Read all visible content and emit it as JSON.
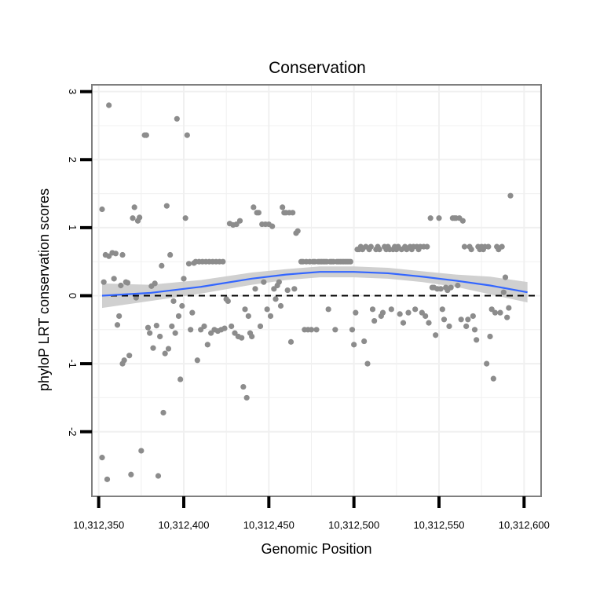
{
  "chart_data": {
    "type": "scatter",
    "title": "Conservation",
    "xlabel": "Genomic Position",
    "ylabel": "phyloP LRT conservation scores",
    "xlim": [
      10312346,
      10312610
    ],
    "ylim": [
      -2.95,
      3.1
    ],
    "x_ticks": [
      10312350,
      10312400,
      10312450,
      10312500,
      10312550,
      10312600
    ],
    "x_tick_labels": [
      "10,312,350",
      "10,312,400",
      "10,312,450",
      "10,312,500",
      "10,312,550",
      "10,312,600"
    ],
    "y_ticks": [
      3,
      2,
      1,
      0,
      -1,
      -2
    ],
    "y_tick_labels": [
      "3",
      "2",
      "1",
      "0",
      "-1",
      "-2"
    ],
    "grid": true,
    "reference_line": {
      "y": 0,
      "style": "dashed",
      "color": "#000000"
    },
    "colors": {
      "points": "#8c8c8c",
      "smooth": "#3366ff",
      "band": "#c8c8c8",
      "panel_border": "#7f7f7f",
      "grid": "#f0f0f0"
    },
    "series": [
      {
        "name": "scores",
        "points": [
          [
            10312352,
            1.27
          ],
          [
            10312352,
            -2.38
          ],
          [
            10312353,
            0.2
          ],
          [
            10312354,
            0.6
          ],
          [
            10312355,
            -2.7
          ],
          [
            10312356,
            2.8
          ],
          [
            10312356,
            0.58
          ],
          [
            10312358,
            0.63
          ],
          [
            10312359,
            0.25
          ],
          [
            10312360,
            0.62
          ],
          [
            10312361,
            -0.43
          ],
          [
            10312362,
            -0.3
          ],
          [
            10312363,
            0.15
          ],
          [
            10312364,
            -1.0
          ],
          [
            10312364,
            0.6
          ],
          [
            10312365,
            -0.95
          ],
          [
            10312366,
            0.2
          ],
          [
            10312367,
            0.19
          ],
          [
            10312368,
            -0.88
          ],
          [
            10312369,
            -2.63
          ],
          [
            10312370,
            1.14
          ],
          [
            10312371,
            1.3
          ],
          [
            10312372,
            -0.03
          ],
          [
            10312373,
            1.1
          ],
          [
            10312374,
            1.15
          ],
          [
            10312375,
            -2.28
          ],
          [
            10312377,
            2.36
          ],
          [
            10312378,
            2.36
          ],
          [
            10312379,
            -0.47
          ],
          [
            10312380,
            -0.55
          ],
          [
            10312381,
            0.14
          ],
          [
            10312382,
            -0.77
          ],
          [
            10312383,
            0.18
          ],
          [
            10312384,
            -0.44
          ],
          [
            10312385,
            -2.65
          ],
          [
            10312386,
            -0.6
          ],
          [
            10312387,
            0.44
          ],
          [
            10312388,
            -1.72
          ],
          [
            10312389,
            -0.85
          ],
          [
            10312390,
            1.32
          ],
          [
            10312391,
            -0.78
          ],
          [
            10312392,
            0.6
          ],
          [
            10312393,
            -0.45
          ],
          [
            10312394,
            -0.08
          ],
          [
            10312395,
            -0.55
          ],
          [
            10312396,
            2.6
          ],
          [
            10312397,
            -0.3
          ],
          [
            10312398,
            -1.23
          ],
          [
            10312399,
            -0.15
          ],
          [
            10312400,
            0.25
          ],
          [
            10312401,
            1.14
          ],
          [
            10312402,
            2.36
          ],
          [
            10312403,
            0.47
          ],
          [
            10312404,
            -0.5
          ],
          [
            10312405,
            -0.25
          ],
          [
            10312406,
            0.48
          ],
          [
            10312407,
            0.5
          ],
          [
            10312408,
            -0.95
          ],
          [
            10312409,
            0.5
          ],
          [
            10312410,
            -0.5
          ],
          [
            10312411,
            0.5
          ],
          [
            10312412,
            -0.45
          ],
          [
            10312413,
            0.5
          ],
          [
            10312414,
            -0.72
          ],
          [
            10312415,
            0.5
          ],
          [
            10312416,
            -0.55
          ],
          [
            10312417,
            0.5
          ],
          [
            10312418,
            -0.5
          ],
          [
            10312419,
            0.5
          ],
          [
            10312420,
            -0.52
          ],
          [
            10312421,
            0.5
          ],
          [
            10312422,
            -0.5
          ],
          [
            10312423,
            0.5
          ],
          [
            10312424,
            -0.48
          ],
          [
            10312425,
            -0.05
          ],
          [
            10312426,
            -0.08
          ],
          [
            10312427,
            1.06
          ],
          [
            10312428,
            -0.45
          ],
          [
            10312429,
            1.04
          ],
          [
            10312430,
            -0.55
          ],
          [
            10312431,
            1.05
          ],
          [
            10312432,
            -0.6
          ],
          [
            10312433,
            1.1
          ],
          [
            10312434,
            -0.62
          ],
          [
            10312435,
            -1.34
          ],
          [
            10312436,
            -0.2
          ],
          [
            10312437,
            -1.5
          ],
          [
            10312438,
            -0.3
          ],
          [
            10312439,
            -0.55
          ],
          [
            10312440,
            -0.6
          ],
          [
            10312441,
            1.3
          ],
          [
            10312442,
            0.1
          ],
          [
            10312443,
            1.22
          ],
          [
            10312444,
            1.22
          ],
          [
            10312445,
            -0.45
          ],
          [
            10312446,
            1.05
          ],
          [
            10312447,
            0.2
          ],
          [
            10312448,
            1.05
          ],
          [
            10312449,
            -0.2
          ],
          [
            10312450,
            1.05
          ],
          [
            10312451,
            -0.3
          ],
          [
            10312452,
            1.02
          ],
          [
            10312453,
            0.1
          ],
          [
            10312454,
            -0.05
          ],
          [
            10312455,
            0.15
          ],
          [
            10312456,
            0.2
          ],
          [
            10312457,
            -0.15
          ],
          [
            10312458,
            1.3
          ],
          [
            10312459,
            1.22
          ],
          [
            10312460,
            1.22
          ],
          [
            10312461,
            0.08
          ],
          [
            10312462,
            1.22
          ],
          [
            10312463,
            -0.68
          ],
          [
            10312464,
            1.22
          ],
          [
            10312465,
            0.1
          ],
          [
            10312466,
            0.92
          ],
          [
            10312467,
            0.95
          ],
          [
            10312469,
            0.5
          ],
          [
            10312470,
            0.5
          ],
          [
            10312471,
            -0.5
          ],
          [
            10312472,
            0.5
          ],
          [
            10312473,
            -0.5
          ],
          [
            10312474,
            0.5
          ],
          [
            10312475,
            -0.5
          ],
          [
            10312476,
            0.5
          ],
          [
            10312477,
            0.5
          ],
          [
            10312478,
            -0.5
          ],
          [
            10312479,
            0.5
          ],
          [
            10312480,
            0.5
          ],
          [
            10312481,
            0.5
          ],
          [
            10312482,
            0.5
          ],
          [
            10312483,
            0.5
          ],
          [
            10312484,
            0.5
          ],
          [
            10312485,
            -0.2
          ],
          [
            10312486,
            0.5
          ],
          [
            10312487,
            0.5
          ],
          [
            10312488,
            0.5
          ],
          [
            10312489,
            -0.5
          ],
          [
            10312490,
            0.5
          ],
          [
            10312491,
            0.5
          ],
          [
            10312492,
            0.5
          ],
          [
            10312493,
            0.5
          ],
          [
            10312494,
            0.5
          ],
          [
            10312495,
            0.5
          ],
          [
            10312496,
            0.5
          ],
          [
            10312497,
            0.5
          ],
          [
            10312498,
            0.5
          ],
          [
            10312499,
            -0.5
          ],
          [
            10312500,
            -0.72
          ],
          [
            10312501,
            -0.25
          ],
          [
            10312502,
            0.68
          ],
          [
            10312503,
            0.68
          ],
          [
            10312504,
            0.72
          ],
          [
            10312505,
            0.68
          ],
          [
            10312506,
            -0.67
          ],
          [
            10312507,
            0.72
          ],
          [
            10312508,
            -1.0
          ],
          [
            10312509,
            0.68
          ],
          [
            10312510,
            0.72
          ],
          [
            10312511,
            -0.2
          ],
          [
            10312512,
            -0.37
          ],
          [
            10312513,
            0.68
          ],
          [
            10312514,
            0.72
          ],
          [
            10312515,
            0.68
          ],
          [
            10312516,
            -0.3
          ],
          [
            10312517,
            -0.25
          ],
          [
            10312518,
            0.72
          ],
          [
            10312519,
            0.68
          ],
          [
            10312520,
            0.72
          ],
          [
            10312521,
            0.68
          ],
          [
            10312522,
            -0.2
          ],
          [
            10312523,
            0.68
          ],
          [
            10312524,
            0.72
          ],
          [
            10312525,
            0.68
          ],
          [
            10312526,
            0.72
          ],
          [
            10312527,
            -0.27
          ],
          [
            10312528,
            0.68
          ],
          [
            10312529,
            -0.4
          ],
          [
            10312530,
            0.72
          ],
          [
            10312531,
            0.68
          ],
          [
            10312532,
            -0.25
          ],
          [
            10312533,
            0.72
          ],
          [
            10312534,
            0.68
          ],
          [
            10312535,
            0.72
          ],
          [
            10312536,
            -0.2
          ],
          [
            10312537,
            0.72
          ],
          [
            10312538,
            0.68
          ],
          [
            10312539,
            0.72
          ],
          [
            10312540,
            -0.25
          ],
          [
            10312541,
            0.72
          ],
          [
            10312542,
            -0.3
          ],
          [
            10312543,
            0.72
          ],
          [
            10312544,
            -0.4
          ],
          [
            10312545,
            1.14
          ],
          [
            10312546,
            0.12
          ],
          [
            10312547,
            0.12
          ],
          [
            10312548,
            -0.58
          ],
          [
            10312549,
            0.1
          ],
          [
            10312550,
            1.14
          ],
          [
            10312551,
            0.1
          ],
          [
            10312552,
            -0.2
          ],
          [
            10312553,
            -0.35
          ],
          [
            10312554,
            0.12
          ],
          [
            10312555,
            0.08
          ],
          [
            10312556,
            -0.45
          ],
          [
            10312557,
            0.12
          ],
          [
            10312558,
            1.14
          ],
          [
            10312559,
            1.14
          ],
          [
            10312560,
            1.14
          ],
          [
            10312561,
            0.15
          ],
          [
            10312562,
            1.14
          ],
          [
            10312563,
            -0.35
          ],
          [
            10312564,
            1.1
          ],
          [
            10312565,
            0.72
          ],
          [
            10312566,
            -0.45
          ],
          [
            10312567,
            -0.35
          ],
          [
            10312568,
            0.72
          ],
          [
            10312569,
            0.68
          ],
          [
            10312570,
            -0.3
          ],
          [
            10312571,
            -0.5
          ],
          [
            10312572,
            -0.65
          ],
          [
            10312573,
            0.72
          ],
          [
            10312574,
            0.68
          ],
          [
            10312575,
            0.72
          ],
          [
            10312576,
            0.68
          ],
          [
            10312577,
            0.72
          ],
          [
            10312578,
            -1.0
          ],
          [
            10312579,
            0.72
          ],
          [
            10312580,
            -0.6
          ],
          [
            10312581,
            -0.2
          ],
          [
            10312582,
            -1.22
          ],
          [
            10312583,
            -0.25
          ],
          [
            10312584,
            0.72
          ],
          [
            10312585,
            0.68
          ],
          [
            10312586,
            -0.25
          ],
          [
            10312587,
            0.72
          ],
          [
            10312588,
            0.05
          ],
          [
            10312589,
            0.27
          ],
          [
            10312590,
            -0.32
          ],
          [
            10312591,
            -0.18
          ],
          [
            10312592,
            1.47
          ]
        ]
      }
    ],
    "smooth_line": {
      "method": "loess",
      "x": [
        10312352,
        10312380,
        10312410,
        10312440,
        10312460,
        10312480,
        10312500,
        10312520,
        10312540,
        10312560,
        10312580,
        10312602
      ],
      "y": [
        0.0,
        0.04,
        0.13,
        0.25,
        0.31,
        0.35,
        0.35,
        0.33,
        0.28,
        0.22,
        0.15,
        0.05
      ],
      "ci_lower": [
        -0.18,
        -0.08,
        0.03,
        0.16,
        0.23,
        0.27,
        0.27,
        0.25,
        0.2,
        0.13,
        0.02,
        -0.1
      ],
      "ci_upper": [
        0.18,
        0.16,
        0.23,
        0.34,
        0.39,
        0.43,
        0.43,
        0.41,
        0.36,
        0.31,
        0.28,
        0.2
      ]
    }
  }
}
